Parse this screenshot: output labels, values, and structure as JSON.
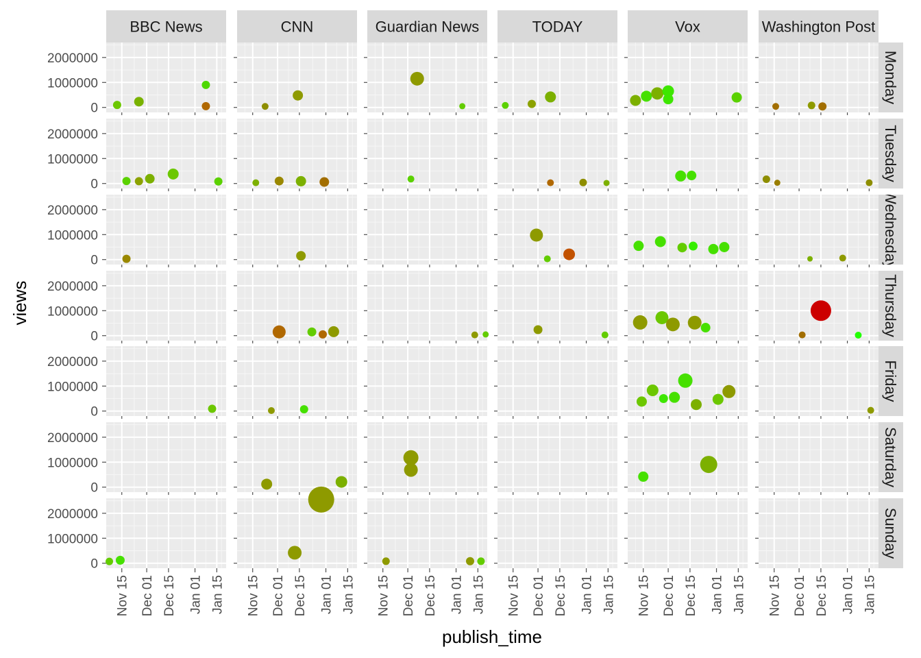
{
  "chart_data": {
    "type": "scatter",
    "title": "",
    "xlabel": "publish_time",
    "ylabel": "views",
    "columns": [
      "BBC News",
      "CNN",
      "Guardian News",
      "TODAY",
      "Vox",
      "Washington Post"
    ],
    "rows": [
      "Monday",
      "Tuesday",
      "Wednesday",
      "Thursday",
      "Friday",
      "Saturday",
      "Sunday"
    ],
    "x_ticks": [
      "Nov 15",
      "Dec 01",
      "Dec 15",
      "Jan 01",
      "Jan 15"
    ],
    "x_tick_days": [
      14,
      30,
      44,
      61,
      75
    ],
    "x_range_days": [
      4,
      81
    ],
    "x_origin": "2020-11-01",
    "y_ticks": [
      "0",
      "1000000",
      "2000000"
    ],
    "y_tick_values": [
      0,
      1000000,
      2000000
    ],
    "ylim": [
      -200000,
      2600000
    ],
    "point_color_note": "color mapped continuously from green (#22ff00) to red (#cc0000); size scaled with views",
    "points": [
      {
        "channel": "BBC News",
        "day": "Monday",
        "x": 11,
        "views": 100000,
        "color": "#6cc700",
        "size": 6
      },
      {
        "channel": "BBC News",
        "day": "Monday",
        "x": 25,
        "views": 230000,
        "color": "#79b200",
        "size": 7
      },
      {
        "channel": "BBC News",
        "day": "Monday",
        "x": 68,
        "views": 900000,
        "color": "#4ed800",
        "size": 6
      },
      {
        "channel": "BBC News",
        "day": "Monday",
        "x": 68,
        "views": 50000,
        "color": "#b06800",
        "size": 6
      },
      {
        "channel": "CNN",
        "day": "Monday",
        "x": 22,
        "views": 40000,
        "color": "#8e8e00",
        "size": 5
      },
      {
        "channel": "CNN",
        "day": "Monday",
        "x": 43,
        "views": 480000,
        "color": "#8e9a00",
        "size": 7.5
      },
      {
        "channel": "Guardian News",
        "day": "Monday",
        "x": 36,
        "views": 1150000,
        "color": "#8e9a00",
        "size": 10
      },
      {
        "channel": "Guardian News",
        "day": "Monday",
        "x": 65,
        "views": 50000,
        "color": "#63cc00",
        "size": 4.5
      },
      {
        "channel": "TODAY",
        "day": "Monday",
        "x": 9,
        "views": 80000,
        "color": "#5bd100",
        "size": 5
      },
      {
        "channel": "TODAY",
        "day": "Monday",
        "x": 26,
        "views": 140000,
        "color": "#8ca200",
        "size": 6
      },
      {
        "channel": "TODAY",
        "day": "Monday",
        "x": 38,
        "views": 420000,
        "color": "#7cb000",
        "size": 8
      },
      {
        "channel": "Vox",
        "day": "Monday",
        "x": 9,
        "views": 280000,
        "color": "#7cb000",
        "size": 8
      },
      {
        "channel": "Vox",
        "day": "Monday",
        "x": 16,
        "views": 450000,
        "color": "#46e000",
        "size": 8
      },
      {
        "channel": "Vox",
        "day": "Monday",
        "x": 23,
        "views": 560000,
        "color": "#7cb000",
        "size": 9
      },
      {
        "channel": "Vox",
        "day": "Monday",
        "x": 30,
        "views": 650000,
        "color": "#3ee600",
        "size": 8.5
      },
      {
        "channel": "Vox",
        "day": "Monday",
        "x": 30,
        "views": 330000,
        "color": "#3ee600",
        "size": 7.5
      },
      {
        "channel": "Vox",
        "day": "Monday",
        "x": 74,
        "views": 400000,
        "color": "#5ad100",
        "size": 7.5
      },
      {
        "channel": "Washington Post",
        "day": "Monday",
        "x": 15,
        "views": 40000,
        "color": "#a26e00",
        "size": 5
      },
      {
        "channel": "Washington Post",
        "day": "Monday",
        "x": 38,
        "views": 80000,
        "color": "#8e9a00",
        "size": 5.5
      },
      {
        "channel": "Washington Post",
        "day": "Monday",
        "x": 45,
        "views": 40000,
        "color": "#a26e00",
        "size": 6
      },
      {
        "channel": "BBC News",
        "day": "Tuesday",
        "x": 17,
        "views": 100000,
        "color": "#5bd100",
        "size": 6
      },
      {
        "channel": "BBC News",
        "day": "Tuesday",
        "x": 25,
        "views": 90000,
        "color": "#8ca200",
        "size": 6
      },
      {
        "channel": "BBC News",
        "day": "Tuesday",
        "x": 32,
        "views": 190000,
        "color": "#7cb000",
        "size": 7
      },
      {
        "channel": "BBC News",
        "day": "Tuesday",
        "x": 47,
        "views": 380000,
        "color": "#6cc700",
        "size": 8
      },
      {
        "channel": "BBC News",
        "day": "Tuesday",
        "x": 76,
        "views": 80000,
        "color": "#5bd100",
        "size": 6
      },
      {
        "channel": "CNN",
        "day": "Tuesday",
        "x": 16,
        "views": 30000,
        "color": "#7cb000",
        "size": 5
      },
      {
        "channel": "CNN",
        "day": "Tuesday",
        "x": 31,
        "views": 100000,
        "color": "#9a8800",
        "size": 6.5
      },
      {
        "channel": "CNN",
        "day": "Tuesday",
        "x": 45,
        "views": 90000,
        "color": "#7cb000",
        "size": 7.5
      },
      {
        "channel": "CNN",
        "day": "Tuesday",
        "x": 60,
        "views": 60000,
        "color": "#a26e00",
        "size": 7
      },
      {
        "channel": "Guardian News",
        "day": "Tuesday",
        "x": 32,
        "views": 180000,
        "color": "#5bd100",
        "size": 5
      },
      {
        "channel": "TODAY",
        "day": "Tuesday",
        "x": 38,
        "views": 30000,
        "color": "#b06800",
        "size": 5
      },
      {
        "channel": "TODAY",
        "day": "Tuesday",
        "x": 59,
        "views": 40000,
        "color": "#8e8e00",
        "size": 5.5
      },
      {
        "channel": "TODAY",
        "day": "Tuesday",
        "x": 74,
        "views": 20000,
        "color": "#7cb000",
        "size": 4.5
      },
      {
        "channel": "Vox",
        "day": "Tuesday",
        "x": 38,
        "views": 300000,
        "color": "#46e000",
        "size": 8
      },
      {
        "channel": "Vox",
        "day": "Tuesday",
        "x": 45,
        "views": 320000,
        "color": "#46e000",
        "size": 7
      },
      {
        "channel": "Washington Post",
        "day": "Tuesday",
        "x": 9,
        "views": 170000,
        "color": "#8e8e00",
        "size": 5.5
      },
      {
        "channel": "Washington Post",
        "day": "Tuesday",
        "x": 16,
        "views": 30000,
        "color": "#9a7e00",
        "size": 4.5
      },
      {
        "channel": "Washington Post",
        "day": "Tuesday",
        "x": 75,
        "views": 30000,
        "color": "#8e8e00",
        "size": 5
      },
      {
        "channel": "BBC News",
        "day": "Wednesday",
        "x": 17,
        "views": 30000,
        "color": "#9a8800",
        "size": 6
      },
      {
        "channel": "CNN",
        "day": "Wednesday",
        "x": 45,
        "views": 150000,
        "color": "#8e9a00",
        "size": 7
      },
      {
        "channel": "TODAY",
        "day": "Wednesday",
        "x": 29,
        "views": 980000,
        "color": "#8e9a00",
        "size": 9.5
      },
      {
        "channel": "TODAY",
        "day": "Wednesday",
        "x": 36,
        "views": 30000,
        "color": "#63cc00",
        "size": 5
      },
      {
        "channel": "TODAY",
        "day": "Wednesday",
        "x": 50,
        "views": 210000,
        "color": "#c25200",
        "size": 8.5
      },
      {
        "channel": "Vox",
        "day": "Wednesday",
        "x": 11,
        "views": 550000,
        "color": "#46e000",
        "size": 7.5
      },
      {
        "channel": "Vox",
        "day": "Wednesday",
        "x": 25,
        "views": 720000,
        "color": "#46e000",
        "size": 8
      },
      {
        "channel": "Vox",
        "day": "Wednesday",
        "x": 39,
        "views": 480000,
        "color": "#63cc00",
        "size": 7
      },
      {
        "channel": "Vox",
        "day": "Wednesday",
        "x": 46,
        "views": 540000,
        "color": "#36ee00",
        "size": 6.5
      },
      {
        "channel": "Vox",
        "day": "Wednesday",
        "x": 59,
        "views": 420000,
        "color": "#46e000",
        "size": 7.5
      },
      {
        "channel": "Vox",
        "day": "Wednesday",
        "x": 66,
        "views": 500000,
        "color": "#46e000",
        "size": 7.5
      },
      {
        "channel": "Washington Post",
        "day": "Wednesday",
        "x": 37,
        "views": 30000,
        "color": "#7cb000",
        "size": 4
      },
      {
        "channel": "Washington Post",
        "day": "Wednesday",
        "x": 58,
        "views": 60000,
        "color": "#8e9a00",
        "size": 5
      },
      {
        "channel": "CNN",
        "day": "Thursday",
        "x": 31,
        "views": 150000,
        "color": "#b06800",
        "size": 9.5
      },
      {
        "channel": "CNN",
        "day": "Thursday",
        "x": 52,
        "views": 150000,
        "color": "#63cc00",
        "size": 6.5
      },
      {
        "channel": "CNN",
        "day": "Thursday",
        "x": 59,
        "views": 50000,
        "color": "#b06800",
        "size": 6
      },
      {
        "channel": "CNN",
        "day": "Thursday",
        "x": 66,
        "views": 160000,
        "color": "#8e9a00",
        "size": 8
      },
      {
        "channel": "Guardian News",
        "day": "Thursday",
        "x": 73,
        "views": 30000,
        "color": "#8e9a00",
        "size": 5
      },
      {
        "channel": "Guardian News",
        "day": "Thursday",
        "x": 80,
        "views": 50000,
        "color": "#63cc00",
        "size": 4.5
      },
      {
        "channel": "TODAY",
        "day": "Thursday",
        "x": 30,
        "views": 240000,
        "color": "#8e9a00",
        "size": 6.5
      },
      {
        "channel": "TODAY",
        "day": "Thursday",
        "x": 73,
        "views": 30000,
        "color": "#63cc00",
        "size": 5
      },
      {
        "channel": "Vox",
        "day": "Thursday",
        "x": 12,
        "views": 530000,
        "color": "#8e9a00",
        "size": 10.5
      },
      {
        "channel": "Vox",
        "day": "Thursday",
        "x": 26,
        "views": 720000,
        "color": "#6cc700",
        "size": 9.5
      },
      {
        "channel": "Vox",
        "day": "Thursday",
        "x": 33,
        "views": 450000,
        "color": "#8e9a00",
        "size": 10
      },
      {
        "channel": "Vox",
        "day": "Thursday",
        "x": 47,
        "views": 520000,
        "color": "#8e9a00",
        "size": 10
      },
      {
        "channel": "Vox",
        "day": "Thursday",
        "x": 54,
        "views": 320000,
        "color": "#46e000",
        "size": 7
      },
      {
        "channel": "Washington Post",
        "day": "Thursday",
        "x": 32,
        "views": 30000,
        "color": "#a26e00",
        "size": 5
      },
      {
        "channel": "Washington Post",
        "day": "Thursday",
        "x": 44,
        "views": 1000000,
        "color": "#cc0000",
        "size": 15
      },
      {
        "channel": "Washington Post",
        "day": "Thursday",
        "x": 68,
        "views": 20000,
        "color": "#22ff00",
        "size": 5
      },
      {
        "channel": "BBC News",
        "day": "Friday",
        "x": 72,
        "views": 90000,
        "color": "#6cc700",
        "size": 6
      },
      {
        "channel": "CNN",
        "day": "Friday",
        "x": 26,
        "views": 20000,
        "color": "#8e9a00",
        "size": 5
      },
      {
        "channel": "CNN",
        "day": "Friday",
        "x": 47,
        "views": 70000,
        "color": "#46e000",
        "size": 6
      },
      {
        "channel": "Vox",
        "day": "Friday",
        "x": 13,
        "views": 380000,
        "color": "#6cc700",
        "size": 7.5
      },
      {
        "channel": "Vox",
        "day": "Friday",
        "x": 20,
        "views": 830000,
        "color": "#6cc700",
        "size": 8.5
      },
      {
        "channel": "Vox",
        "day": "Friday",
        "x": 27,
        "views": 500000,
        "color": "#3ee600",
        "size": 6.5
      },
      {
        "channel": "Vox",
        "day": "Friday",
        "x": 34,
        "views": 550000,
        "color": "#46e000",
        "size": 8
      },
      {
        "channel": "Vox",
        "day": "Friday",
        "x": 41,
        "views": 1220000,
        "color": "#46e000",
        "size": 10.5
      },
      {
        "channel": "Vox",
        "day": "Friday",
        "x": 48,
        "views": 260000,
        "color": "#7cb000",
        "size": 8
      },
      {
        "channel": "Vox",
        "day": "Friday",
        "x": 62,
        "views": 470000,
        "color": "#6cc700",
        "size": 8
      },
      {
        "channel": "Vox",
        "day": "Friday",
        "x": 69,
        "views": 780000,
        "color": "#8e9a00",
        "size": 9.5
      },
      {
        "channel": "Washington Post",
        "day": "Friday",
        "x": 76,
        "views": 30000,
        "color": "#8e9a00",
        "size": 5
      },
      {
        "channel": "CNN",
        "day": "Saturday",
        "x": 23,
        "views": 120000,
        "color": "#8e9a00",
        "size": 8
      },
      {
        "channel": "CNN",
        "day": "Saturday",
        "x": 71,
        "views": 210000,
        "color": "#7cb000",
        "size": 8.5
      },
      {
        "channel": "Guardian News",
        "day": "Saturday",
        "x": 32,
        "views": 1180000,
        "color": "#8e9a00",
        "size": 11
      },
      {
        "channel": "Guardian News",
        "day": "Saturday",
        "x": 32,
        "views": 690000,
        "color": "#8e9a00",
        "size": 10
      },
      {
        "channel": "Vox",
        "day": "Saturday",
        "x": 14,
        "views": 420000,
        "color": "#46e000",
        "size": 7.5
      },
      {
        "channel": "Vox",
        "day": "Saturday",
        "x": 56,
        "views": 910000,
        "color": "#7cb000",
        "size": 12.5
      },
      {
        "channel": "BBC News",
        "day": "Sunday",
        "x": 6,
        "views": 70000,
        "color": "#63cc00",
        "size": 5.5
      },
      {
        "channel": "BBC News",
        "day": "Sunday",
        "x": 13,
        "views": 120000,
        "color": "#46e000",
        "size": 6.5
      },
      {
        "channel": "CNN",
        "day": "Sunday",
        "x": 58,
        "views": 2550000,
        "color": "#8e9a00",
        "size": 19
      },
      {
        "channel": "CNN",
        "day": "Sunday",
        "x": 41,
        "views": 420000,
        "color": "#8e9a00",
        "size": 10
      },
      {
        "channel": "Guardian News",
        "day": "Sunday",
        "x": 16,
        "views": 80000,
        "color": "#8e9a00",
        "size": 5.5
      },
      {
        "channel": "Guardian News",
        "day": "Sunday",
        "x": 70,
        "views": 80000,
        "color": "#8e9a00",
        "size": 6
      },
      {
        "channel": "Guardian News",
        "day": "Sunday",
        "x": 77,
        "views": 80000,
        "color": "#63cc00",
        "size": 5.5
      }
    ]
  }
}
